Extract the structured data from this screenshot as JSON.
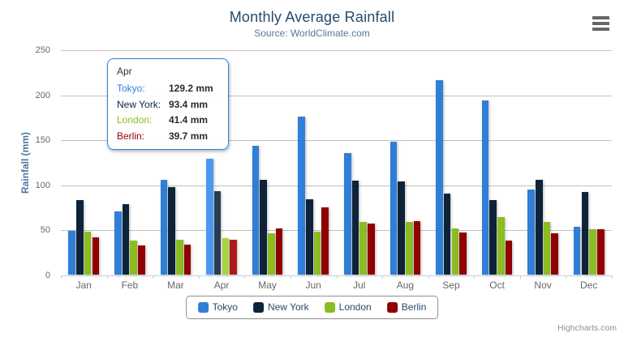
{
  "chart": {
    "title": "Monthly Average Rainfall",
    "subtitle": "Source: WorldClimate.com",
    "y_axis_title": "Rainfall (mm)",
    "credits_label": "Highcharts.com"
  },
  "chart_data": {
    "type": "bar",
    "title": "Monthly Average Rainfall",
    "subtitle": "Source: WorldClimate.com",
    "categories": [
      "Jan",
      "Feb",
      "Mar",
      "Apr",
      "May",
      "Jun",
      "Jul",
      "Aug",
      "Sep",
      "Oct",
      "Nov",
      "Dec"
    ],
    "series": [
      {
        "name": "Tokyo",
        "color": "#2f7ed8",
        "values": [
          49.9,
          71.5,
          106.4,
          129.2,
          144.0,
          176.0,
          135.6,
          148.5,
          216.4,
          194.1,
          95.6,
          54.4
        ]
      },
      {
        "name": "New York",
        "color": "#0d233a",
        "values": [
          83.6,
          78.8,
          98.5,
          93.4,
          106.0,
          84.5,
          105.0,
          104.3,
          91.2,
          83.5,
          106.6,
          92.3
        ]
      },
      {
        "name": "London",
        "color": "#8bbc21",
        "values": [
          48.9,
          38.8,
          39.3,
          41.4,
          47.0,
          48.3,
          59.0,
          59.6,
          52.4,
          65.2,
          59.3,
          51.2
        ]
      },
      {
        "name": "Berlin",
        "color": "#910000",
        "values": [
          42.4,
          33.2,
          34.5,
          39.7,
          52.6,
          75.5,
          57.4,
          60.4,
          47.6,
          39.1,
          46.8,
          51.1
        ]
      }
    ],
    "xlabel": "",
    "ylabel": "Rainfall (mm)",
    "ylim": [
      0,
      250
    ],
    "yticks": [
      0,
      50,
      100,
      150,
      200,
      250
    ],
    "grid": true,
    "legend_position": "bottom",
    "hovered_category": "Apr"
  },
  "tooltip": {
    "header": "Apr",
    "border_color": "#2f7ed8",
    "rows": [
      {
        "label": "Tokyo:",
        "value": "129.2 mm",
        "color": "#2f7ed8"
      },
      {
        "label": "New York:",
        "value": "93.4 mm",
        "color": "#0d233a"
      },
      {
        "label": "London:",
        "value": "41.4 mm",
        "color": "#8bbc21"
      },
      {
        "label": "Berlin:",
        "value": "39.7 mm",
        "color": "#910000"
      }
    ]
  },
  "colors": {
    "grid_line": "#c0c0c0",
    "axis_line": "#c0d0e0",
    "title": "#274b6d",
    "subtitle": "#55789b",
    "axis_title": "#4d759e",
    "axis_label": "#666666",
    "legend_text": "#274b6d",
    "legend_border": "#909090",
    "credits": "#909090"
  }
}
